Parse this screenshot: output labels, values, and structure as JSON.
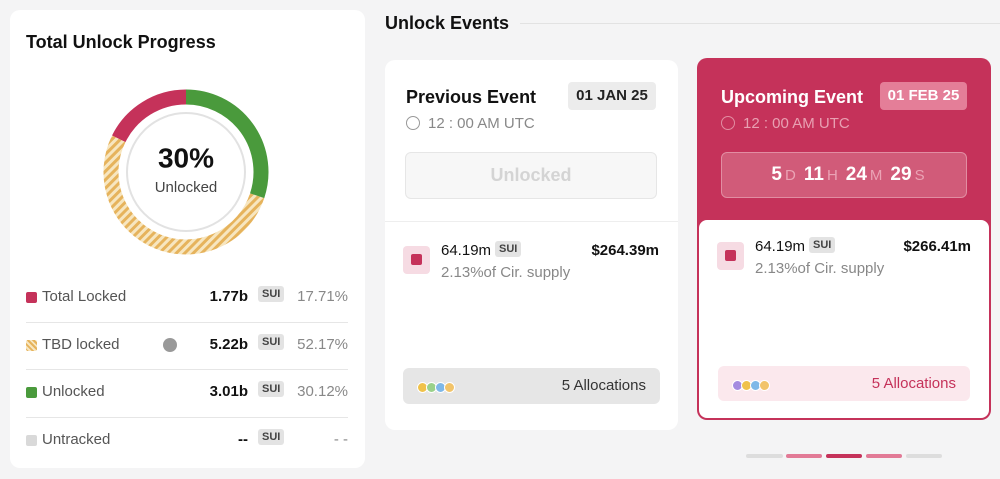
{
  "progress": {
    "title": "Total Unlock Progress",
    "center_value": "30%",
    "center_label": "Unlocked",
    "rows": [
      {
        "label": "Total Locked",
        "amount": "1.77b",
        "unit": "SUI",
        "percent": {
          "value": 17.71,
          "label": "17.71%"
        }
      },
      {
        "label": "TBD locked",
        "amount": "5.22b",
        "unit": "SUI",
        "percent": {
          "value": 52.17,
          "label": "52.17%"
        }
      },
      {
        "label": "Unlocked",
        "amount": "3.01b",
        "unit": "SUI",
        "percent": {
          "value": 30.12,
          "label": "30.12%"
        }
      },
      {
        "label": "Untracked",
        "amount": "--",
        "unit": "SUI",
        "percent": "- -"
      }
    ]
  },
  "events": {
    "title": "Unlock Events",
    "previous": {
      "title": "Previous Event",
      "date": "01 JAN 25",
      "time": "12 : 00 AM UTC",
      "button": "Unlocked",
      "amount": "64.19m",
      "unit": "SUI",
      "usd": "$264.39m",
      "supply": "2.13%of Cir. supply",
      "allocations": "5 Allocations"
    },
    "upcoming": {
      "title": "Upcoming Event",
      "date": "01 FEB 25",
      "time": "12 : 00 AM UTC",
      "countdown": [
        {
          "value": "5",
          "unit": "D"
        },
        {
          "value": "11",
          "unit": "H"
        },
        {
          "value": "24",
          "unit": "M"
        },
        {
          "value": "29",
          "unit": "S"
        }
      ],
      "amount": "64.19m",
      "unit": "SUI",
      "usd": "$266.41m",
      "supply": "2.13%of Cir. supply",
      "allocations": "5 Allocations"
    }
  }
}
